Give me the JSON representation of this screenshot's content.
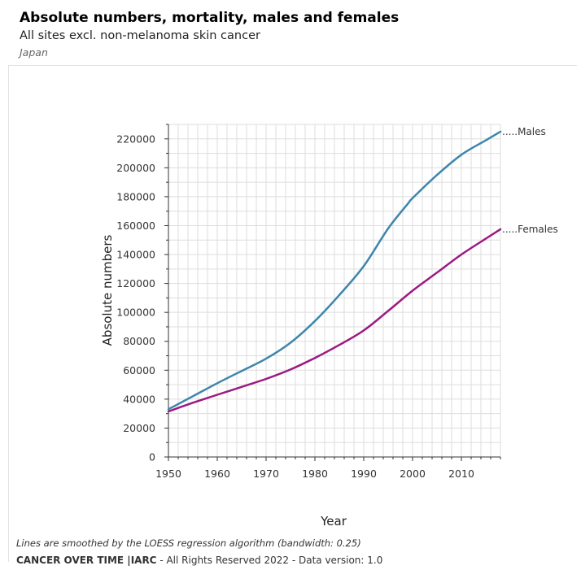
{
  "header": {
    "title": "Absolute numbers, mortality, males and females",
    "subtitle": "All sites excl. non-melanoma skin cancer",
    "country": "Japan"
  },
  "footer": {
    "note": "Lines are smoothed by the LOESS regression algorithm (bandwidth: 0.25)",
    "brand": "CANCER OVER TIME |IARC",
    "rights": " - All Rights Reserved 2022 - Data version: 1.0"
  },
  "colors": {
    "males": "#3e86ab",
    "females": "#9b1a82",
    "grid": "#dddddd",
    "axis": "#333333"
  },
  "chart_data": {
    "type": "line",
    "title": "Absolute numbers, mortality, males and females",
    "xlabel": "Year",
    "ylabel": "Absolute numbers",
    "xlim": [
      1950,
      2018
    ],
    "ylim": [
      0,
      230000
    ],
    "xticks": [
      1950,
      1960,
      1970,
      1980,
      1990,
      2000,
      2010
    ],
    "yticks": [
      0,
      20000,
      40000,
      60000,
      80000,
      100000,
      120000,
      140000,
      160000,
      180000,
      200000,
      220000
    ],
    "grid": true,
    "series": [
      {
        "name": "Males",
        "x": [
          1950,
          1955,
          1960,
          1965,
          1970,
          1975,
          1980,
          1985,
          1990,
          1995,
          1999,
          2000,
          2005,
          2010,
          2015,
          2018
        ],
        "y": [
          33000,
          42000,
          51000,
          59500,
          68000,
          79000,
          94000,
          112000,
          132000,
          158000,
          175000,
          179000,
          195000,
          209000,
          219000,
          225000
        ]
      },
      {
        "name": "Females",
        "x": [
          1950,
          1955,
          1960,
          1965,
          1970,
          1975,
          1980,
          1985,
          1990,
          1995,
          2000,
          2005,
          2010,
          2015,
          2018
        ],
        "y": [
          31500,
          37500,
          43000,
          48500,
          54000,
          60500,
          68500,
          77500,
          87500,
          101000,
          115000,
          127500,
          140000,
          151000,
          157500
        ]
      }
    ]
  }
}
